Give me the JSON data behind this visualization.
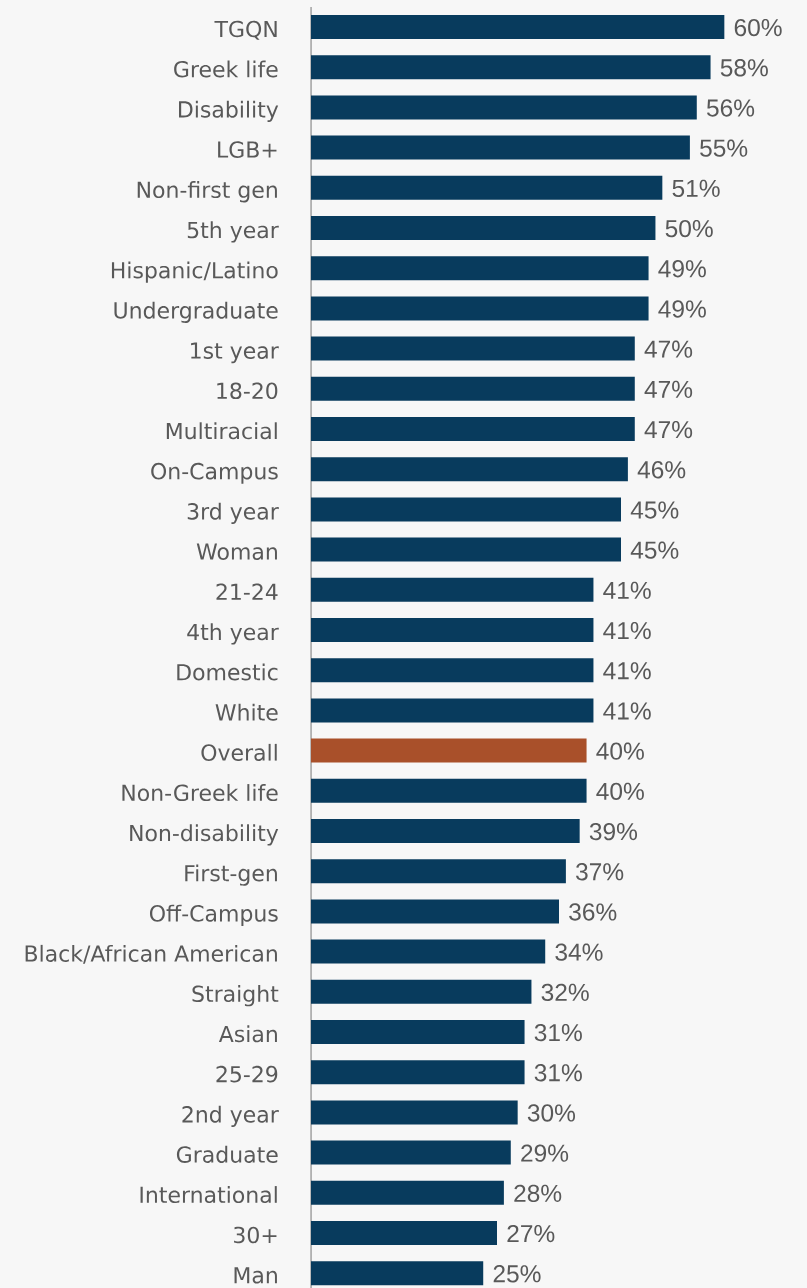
{
  "chart_data": {
    "type": "bar",
    "orientation": "horizontal",
    "categories": [
      "TGQN",
      "Greek life",
      "Disability",
      "LGB+",
      "Non-first gen",
      "5th year",
      "Hispanic/Latino",
      "Undergraduate",
      "1st year",
      "18-20",
      "Multiracial",
      "On-Campus",
      "3rd year",
      "Woman",
      "21-24",
      "4th year",
      "Domestic",
      "White",
      "Overall",
      "Non-Greek life",
      "Non-disability",
      "First-gen",
      "Off-Campus",
      "Black/African American",
      "Straight",
      "Asian",
      "25-29",
      "2nd year",
      "Graduate",
      "International",
      "30+",
      "Man"
    ],
    "values": [
      60,
      58,
      56,
      55,
      51,
      50,
      49,
      49,
      47,
      47,
      47,
      46,
      45,
      45,
      41,
      41,
      41,
      41,
      40,
      40,
      39,
      37,
      36,
      34,
      32,
      31,
      31,
      30,
      29,
      28,
      27,
      25
    ],
    "colors": [
      "#083b5d",
      "#083b5d",
      "#083b5d",
      "#083b5d",
      "#083b5d",
      "#083b5d",
      "#083b5d",
      "#083b5d",
      "#083b5d",
      "#083b5d",
      "#083b5d",
      "#083b5d",
      "#083b5d",
      "#083b5d",
      "#083b5d",
      "#083b5d",
      "#083b5d",
      "#083b5d",
      "#a9502a",
      "#083b5d",
      "#083b5d",
      "#083b5d",
      "#083b5d",
      "#083b5d",
      "#083b5d",
      "#083b5d",
      "#083b5d",
      "#083b5d",
      "#083b5d",
      "#083b5d",
      "#083b5d",
      "#083b5d"
    ],
    "value_labels": [
      "60%",
      "58%",
      "56%",
      "55%",
      "51%",
      "50%",
      "49%",
      "49%",
      "47%",
      "47%",
      "47%",
      "46%",
      "45%",
      "45%",
      "41%",
      "41%",
      "41%",
      "41%",
      "40%",
      "40%",
      "39%",
      "37%",
      "36%",
      "34%",
      "32%",
      "31%",
      "31%",
      "30%",
      "29%",
      "28%",
      "27%",
      "25%"
    ],
    "xlim": [
      0,
      72
    ],
    "tick_labels": "y"
  }
}
